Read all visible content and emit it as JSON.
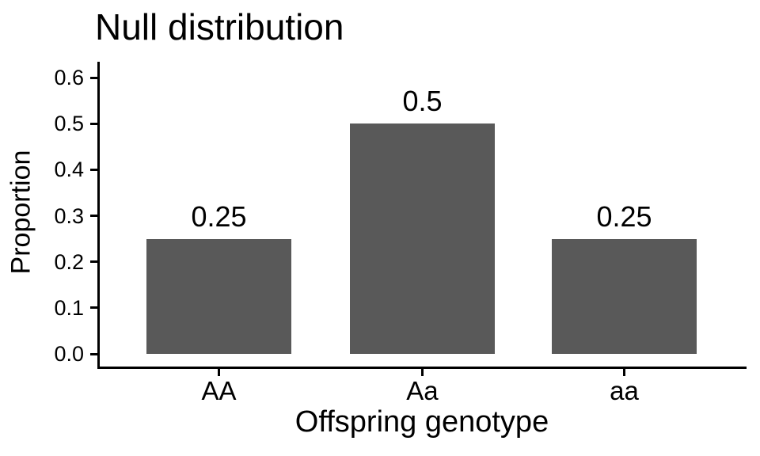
{
  "chart_data": {
    "type": "bar",
    "title": "Null distribution",
    "xlabel": "Offspring genotype",
    "ylabel": "Proportion",
    "categories": [
      "AA",
      "Aa",
      "aa"
    ],
    "values": [
      0.25,
      0.5,
      0.25
    ],
    "bar_labels": [
      "0.25",
      "0.5",
      "0.25"
    ],
    "ylim": [
      0,
      0.6
    ],
    "yticks": [
      0.0,
      0.1,
      0.2,
      0.3,
      0.4,
      0.5,
      0.6
    ],
    "ytick_labels": [
      "0.0",
      "0.1",
      "0.2",
      "0.3",
      "0.4",
      "0.5",
      "0.6"
    ],
    "grid": false,
    "legend_position": "none",
    "bar_color": "#595959",
    "axis_color": "#000000",
    "text_color": "#000000",
    "background_color": "#ffffff"
  }
}
